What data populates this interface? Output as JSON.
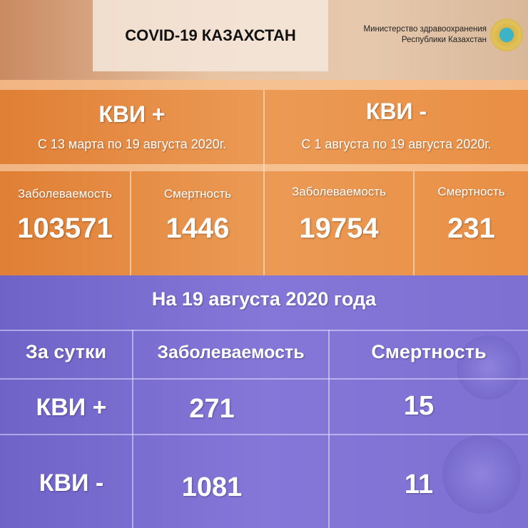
{
  "header": {
    "title": "COVID-19 КАЗАХСТАН",
    "ministry_line1": "Министерство здравоохранения",
    "ministry_line2": "Республики Казахстан"
  },
  "cumulative": [
    {
      "title": "КВИ +",
      "period": "С 13 марта по 19 августа 2020г.",
      "cases_label": "Заболеваемость",
      "cases": "103571",
      "deaths_label": "Смертность",
      "deaths": "1446"
    },
    {
      "title": "КВИ -",
      "period": "С 1 августа по 19 августа 2020г.",
      "cases_label": "Заболеваемость",
      "cases": "19754",
      "deaths_label": "Смертность",
      "deaths": "231"
    }
  ],
  "daily": {
    "title": "На 19 августа 2020 года",
    "headers": [
      "За сутки",
      "Заболеваемость",
      "Смертность"
    ],
    "rows": [
      [
        "КВИ +",
        "271",
        "15"
      ],
      [
        "КВИ -",
        "1081",
        "11"
      ]
    ]
  },
  "colors": {
    "orange": "#e88a42",
    "purple": "#7a6ed2"
  }
}
